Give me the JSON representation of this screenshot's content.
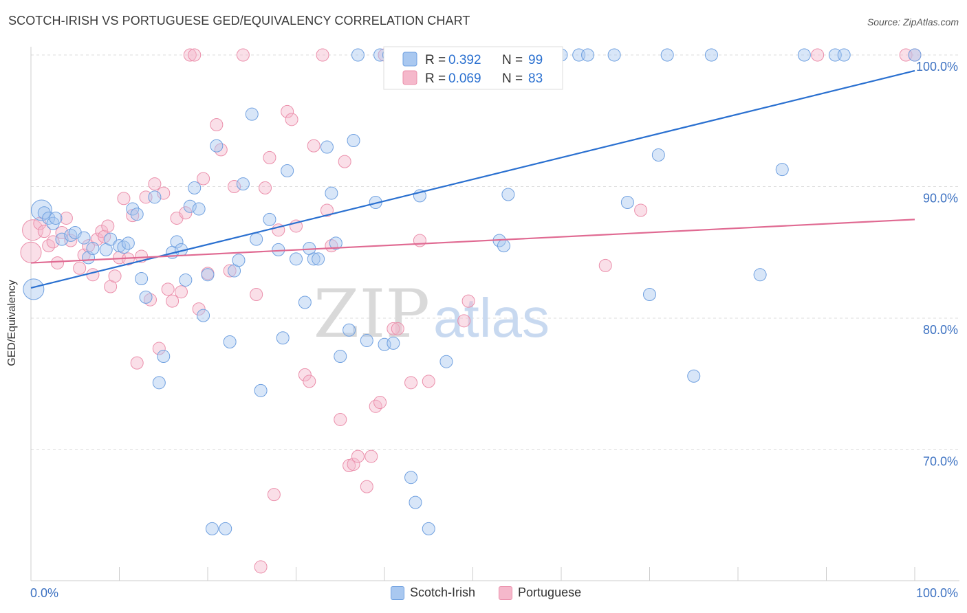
{
  "title": "SCOTCH-IRISH VS PORTUGUESE GED/EQUIVALENCY CORRELATION CHART",
  "source": "Source: ZipAtlas.com",
  "watermark": {
    "part1": "ZIP",
    "part2": "atlas"
  },
  "colors": {
    "blue": "#2a70d0",
    "blue_fill": "#a9c8f0",
    "blue_stroke": "#6fa0e0",
    "pink": "#e06a92",
    "pink_fill": "#f5b8cb",
    "pink_stroke": "#eb8fab",
    "tick_label": "#3d72c2",
    "grid": "#dddddd"
  },
  "legend": {
    "r_label": "R =",
    "n_label": "N =",
    "rows": [
      {
        "r": "0.392",
        "n": "99"
      },
      {
        "r": "0.069",
        "n": "83"
      }
    ]
  },
  "bottom_legend": [
    "Scotch-Irish",
    "Portuguese"
  ],
  "chart_data": {
    "type": "scatter",
    "title": "SCOTCH-IRISH VS PORTUGUESE GED/EQUIVALENCY CORRELATION CHART",
    "xlabel": "",
    "ylabel": "GED/Equivalency",
    "xlim": [
      0,
      100
    ],
    "ylim": [
      60,
      100.5
    ],
    "x_tick_labels": [
      "0.0%",
      "100.0%"
    ],
    "y_ticks": [
      70,
      80,
      90,
      100
    ],
    "y_tick_labels": [
      "70.0%",
      "80.0%",
      "90.0%",
      "100.0%"
    ],
    "grid": true,
    "legend_position": "top-center",
    "series": [
      {
        "name": "Scotch-Irish",
        "r": 0.392,
        "n": 99,
        "trend": [
          [
            0,
            82.3
          ],
          [
            100,
            98.8
          ]
        ],
        "points": [
          [
            0.3,
            82.2
          ],
          [
            1.2,
            88.2
          ],
          [
            1.5,
            88.0
          ],
          [
            2.0,
            87.6
          ],
          [
            2.5,
            87.2
          ],
          [
            2.8,
            87.6
          ],
          [
            3.5,
            86.0
          ],
          [
            4.5,
            86.3
          ],
          [
            5.0,
            86.5
          ],
          [
            6.0,
            86.1
          ],
          [
            6.5,
            84.6
          ],
          [
            7.0,
            85.3
          ],
          [
            8.5,
            85.2
          ],
          [
            9.0,
            86.0
          ],
          [
            10.0,
            85.5
          ],
          [
            10.5,
            85.4
          ],
          [
            11.0,
            85.7
          ],
          [
            11.5,
            88.3
          ],
          [
            12.0,
            87.9
          ],
          [
            12.5,
            83.0
          ],
          [
            13.0,
            81.6
          ],
          [
            14.0,
            89.2
          ],
          [
            14.5,
            75.1
          ],
          [
            15.0,
            77.1
          ],
          [
            16.0,
            85.0
          ],
          [
            16.5,
            85.8
          ],
          [
            17.0,
            85.2
          ],
          [
            17.5,
            82.9
          ],
          [
            18.0,
            88.5
          ],
          [
            18.5,
            89.9
          ],
          [
            19.0,
            88.3
          ],
          [
            19.5,
            80.2
          ],
          [
            20.0,
            83.3
          ],
          [
            20.5,
            64.0
          ],
          [
            21.0,
            93.1
          ],
          [
            22.0,
            64.0
          ],
          [
            22.5,
            78.2
          ],
          [
            23.0,
            83.6
          ],
          [
            23.5,
            84.4
          ],
          [
            24.0,
            90.2
          ],
          [
            25.0,
            95.5
          ],
          [
            25.5,
            86.0
          ],
          [
            26.0,
            74.5
          ],
          [
            27.0,
            87.5
          ],
          [
            28.0,
            85.2
          ],
          [
            28.5,
            78.5
          ],
          [
            29.0,
            91.2
          ],
          [
            30.0,
            84.5
          ],
          [
            31.0,
            81.2
          ],
          [
            31.5,
            85.3
          ],
          [
            32.0,
            84.5
          ],
          [
            32.5,
            84.5
          ],
          [
            33.5,
            93.0
          ],
          [
            34.0,
            89.5
          ],
          [
            34.5,
            85.7
          ],
          [
            35.0,
            77.1
          ],
          [
            36.0,
            79.1
          ],
          [
            36.5,
            93.5
          ],
          [
            37.0,
            100
          ],
          [
            38.0,
            78.3
          ],
          [
            39.0,
            88.8
          ],
          [
            39.5,
            100
          ],
          [
            40.0,
            78.0
          ],
          [
            40.5,
            100
          ],
          [
            41.0,
            78.1
          ],
          [
            42.0,
            100
          ],
          [
            42.5,
            100
          ],
          [
            43.0,
            67.9
          ],
          [
            43.5,
            66.0
          ],
          [
            44.0,
            89.3
          ],
          [
            44.5,
            100
          ],
          [
            45.0,
            64.0
          ],
          [
            46.0,
            100
          ],
          [
            47.0,
            76.7
          ],
          [
            48.0,
            100
          ],
          [
            49.0,
            100
          ],
          [
            50.0,
            100
          ],
          [
            53.0,
            85.9
          ],
          [
            53.5,
            85.5
          ],
          [
            54.0,
            89.4
          ],
          [
            56.0,
            100
          ],
          [
            58.0,
            100
          ],
          [
            58.5,
            100
          ],
          [
            60.0,
            100
          ],
          [
            62.0,
            100
          ],
          [
            63.0,
            100
          ],
          [
            66.0,
            100
          ],
          [
            67.5,
            88.8
          ],
          [
            70.0,
            81.8
          ],
          [
            71.0,
            92.4
          ],
          [
            72.0,
            100
          ],
          [
            75.0,
            75.6
          ],
          [
            77.0,
            100
          ],
          [
            82.5,
            83.3
          ],
          [
            85.0,
            91.3
          ],
          [
            87.5,
            100
          ],
          [
            91.0,
            100
          ],
          [
            92.0,
            100
          ],
          [
            100.0,
            100
          ]
        ]
      },
      {
        "name": "Portuguese",
        "r": 0.069,
        "n": 83,
        "trend": [
          [
            0,
            84.2
          ],
          [
            100,
            87.5
          ]
        ],
        "points": [
          [
            0.0,
            85.0
          ],
          [
            0.2,
            86.7
          ],
          [
            1.0,
            87.2
          ],
          [
            1.5,
            86.6
          ],
          [
            2.0,
            85.5
          ],
          [
            2.5,
            85.8
          ],
          [
            3.0,
            84.2
          ],
          [
            3.5,
            86.5
          ],
          [
            4.0,
            87.6
          ],
          [
            4.5,
            85.9
          ],
          [
            5.5,
            83.8
          ],
          [
            6.0,
            84.8
          ],
          [
            6.5,
            85.5
          ],
          [
            7.0,
            83.3
          ],
          [
            7.5,
            86.0
          ],
          [
            8.0,
            86.6
          ],
          [
            8.3,
            86.2
          ],
          [
            8.7,
            87.0
          ],
          [
            9.0,
            82.4
          ],
          [
            9.5,
            83.2
          ],
          [
            10.0,
            84.6
          ],
          [
            10.5,
            89.1
          ],
          [
            11.0,
            84.5
          ],
          [
            11.5,
            87.8
          ],
          [
            12.0,
            76.6
          ],
          [
            12.5,
            84.7
          ],
          [
            13.0,
            89.2
          ],
          [
            13.5,
            81.4
          ],
          [
            14.0,
            90.2
          ],
          [
            14.5,
            77.7
          ],
          [
            15.0,
            89.5
          ],
          [
            15.5,
            82.2
          ],
          [
            16.0,
            81.3
          ],
          [
            16.5,
            87.6
          ],
          [
            17.0,
            82.0
          ],
          [
            17.5,
            88.0
          ],
          [
            18.0,
            100
          ],
          [
            18.5,
            100
          ],
          [
            19.0,
            80.7
          ],
          [
            19.5,
            90.6
          ],
          [
            20.0,
            83.4
          ],
          [
            21.0,
            94.7
          ],
          [
            21.5,
            92.8
          ],
          [
            22.5,
            83.6
          ],
          [
            23.0,
            90.0
          ],
          [
            24.0,
            100
          ],
          [
            25.5,
            81.8
          ],
          [
            26.0,
            61.1
          ],
          [
            26.5,
            89.9
          ],
          [
            27.0,
            92.2
          ],
          [
            27.5,
            66.6
          ],
          [
            28.0,
            86.7
          ],
          [
            29.0,
            95.7
          ],
          [
            29.5,
            95.1
          ],
          [
            30.0,
            87.0
          ],
          [
            31.0,
            75.7
          ],
          [
            31.5,
            75.2
          ],
          [
            32.0,
            93.1
          ],
          [
            33.0,
            100
          ],
          [
            33.5,
            88.2
          ],
          [
            34.0,
            85.5
          ],
          [
            35.0,
            72.3
          ],
          [
            35.5,
            91.9
          ],
          [
            36.0,
            68.8
          ],
          [
            36.5,
            68.9
          ],
          [
            37.0,
            69.5
          ],
          [
            38.0,
            67.2
          ],
          [
            38.5,
            69.5
          ],
          [
            39.0,
            73.3
          ],
          [
            39.5,
            73.6
          ],
          [
            40.0,
            100
          ],
          [
            41.0,
            79.2
          ],
          [
            41.5,
            79.2
          ],
          [
            43.0,
            75.1
          ],
          [
            44.0,
            85.9
          ],
          [
            45.0,
            75.2
          ],
          [
            49.0,
            79.8
          ],
          [
            49.5,
            81.3
          ],
          [
            65.0,
            84.0
          ],
          [
            69.0,
            88.2
          ],
          [
            89.0,
            100
          ],
          [
            99.0,
            100
          ],
          [
            100.0,
            100
          ]
        ]
      }
    ]
  }
}
